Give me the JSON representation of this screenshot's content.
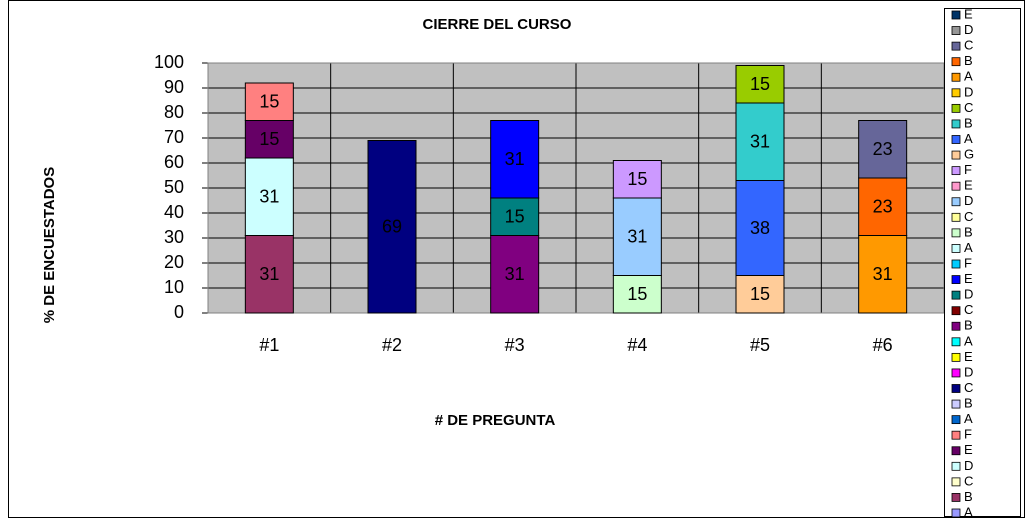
{
  "chart_data": {
    "type": "stacked_bar",
    "title": "CIERRE DEL CURSO",
    "x_label": "# DE PREGUNTA",
    "y_label": "% DE ENCUESTADOS",
    "categories": [
      "#1",
      "#2",
      "#3",
      "#4",
      "#5",
      "#6"
    ],
    "ylim": [
      0,
      100
    ],
    "yticks": [
      0,
      10,
      20,
      30,
      40,
      50,
      60,
      70,
      80,
      90,
      100
    ],
    "grid": true,
    "plot_background": "#c0c0c0",
    "legend": "right",
    "series": [
      {
        "name": "A",
        "color": "#9999ff",
        "values": [
          null,
          null,
          null,
          null,
          null,
          null
        ]
      },
      {
        "name": "B",
        "color": "#993366",
        "values": [
          31,
          null,
          null,
          null,
          null,
          null
        ]
      },
      {
        "name": "C",
        "color": "#ffffcc",
        "values": [
          null,
          null,
          null,
          null,
          null,
          null
        ]
      },
      {
        "name": "D",
        "color": "#ccffff",
        "values": [
          31,
          null,
          null,
          null,
          null,
          null
        ]
      },
      {
        "name": "E",
        "color": "#660066",
        "values": [
          15,
          null,
          null,
          null,
          null,
          null
        ]
      },
      {
        "name": "F",
        "color": "#ff8080",
        "values": [
          15,
          null,
          null,
          null,
          null,
          null
        ]
      },
      {
        "name": "A",
        "color": "#0066cc",
        "values": [
          null,
          null,
          null,
          null,
          null,
          null
        ]
      },
      {
        "name": "B",
        "color": "#ccccff",
        "values": [
          null,
          null,
          null,
          null,
          null,
          null
        ]
      },
      {
        "name": "C",
        "color": "#000080",
        "values": [
          null,
          69,
          null,
          null,
          null,
          null
        ]
      },
      {
        "name": "D",
        "color": "#ff00ff",
        "values": [
          null,
          null,
          null,
          null,
          null,
          null
        ]
      },
      {
        "name": "E",
        "color": "#ffff00",
        "values": [
          null,
          null,
          null,
          null,
          null,
          null
        ]
      },
      {
        "name": "A",
        "color": "#00ffff",
        "values": [
          null,
          null,
          null,
          null,
          null,
          null
        ]
      },
      {
        "name": "B",
        "color": "#800080",
        "values": [
          null,
          null,
          31,
          null,
          null,
          null
        ]
      },
      {
        "name": "C",
        "color": "#800000",
        "values": [
          null,
          null,
          null,
          null,
          null,
          null
        ]
      },
      {
        "name": "D",
        "color": "#008080",
        "values": [
          null,
          null,
          15,
          null,
          null,
          null
        ]
      },
      {
        "name": "E",
        "color": "#0000ff",
        "values": [
          null,
          null,
          31,
          null,
          null,
          null
        ]
      },
      {
        "name": "F",
        "color": "#00ccff",
        "values": [
          null,
          null,
          null,
          null,
          null,
          null
        ]
      },
      {
        "name": "A",
        "color": "#ccffff",
        "values": [
          null,
          null,
          null,
          null,
          null,
          null
        ]
      },
      {
        "name": "B",
        "color": "#ccffcc",
        "values": [
          null,
          null,
          null,
          15,
          null,
          null
        ]
      },
      {
        "name": "C",
        "color": "#ffff99",
        "values": [
          null,
          null,
          null,
          null,
          null,
          null
        ]
      },
      {
        "name": "D",
        "color": "#99ccff",
        "values": [
          null,
          null,
          null,
          31,
          null,
          null
        ]
      },
      {
        "name": "E",
        "color": "#ff99cc",
        "values": [
          null,
          null,
          null,
          null,
          null,
          null
        ]
      },
      {
        "name": "F",
        "color": "#cc99ff",
        "values": [
          null,
          null,
          null,
          15,
          null,
          null
        ]
      },
      {
        "name": "G",
        "color": "#ffcc99",
        "values": [
          null,
          null,
          null,
          null,
          15,
          null
        ]
      },
      {
        "name": "A",
        "color": "#3366ff",
        "values": [
          null,
          null,
          null,
          null,
          38,
          null
        ]
      },
      {
        "name": "B",
        "color": "#33cccc",
        "values": [
          null,
          null,
          null,
          null,
          31,
          null
        ]
      },
      {
        "name": "C",
        "color": "#99cc00",
        "values": [
          null,
          null,
          null,
          null,
          15,
          null
        ]
      },
      {
        "name": "D",
        "color": "#ffcc00",
        "values": [
          null,
          null,
          null,
          null,
          null,
          null
        ]
      },
      {
        "name": "A",
        "color": "#ff9900",
        "values": [
          null,
          null,
          null,
          null,
          null,
          31
        ]
      },
      {
        "name": "B",
        "color": "#ff6600",
        "values": [
          null,
          null,
          null,
          null,
          null,
          23
        ]
      },
      {
        "name": "C",
        "color": "#666699",
        "values": [
          null,
          null,
          null,
          null,
          null,
          23
        ]
      },
      {
        "name": "D",
        "color": "#969696",
        "values": [
          null,
          null,
          null,
          null,
          null,
          null
        ]
      },
      {
        "name": "E",
        "color": "#003366",
        "values": [
          null,
          null,
          null,
          null,
          null,
          null
        ]
      }
    ]
  }
}
